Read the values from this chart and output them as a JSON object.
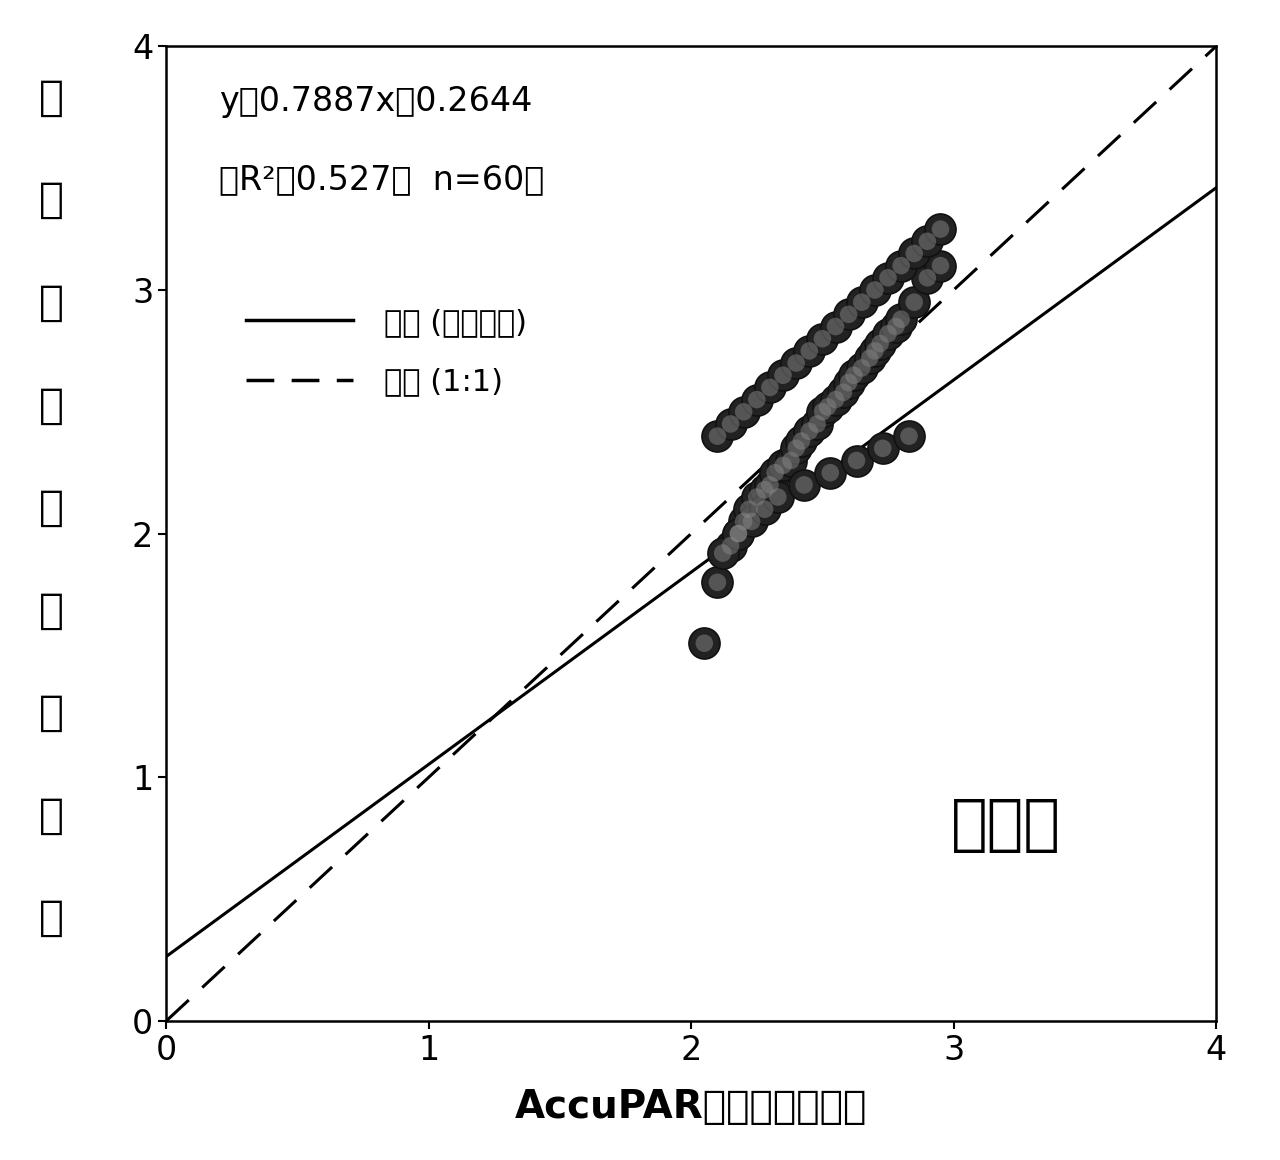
{
  "x_data": [
    2.05,
    2.1,
    2.15,
    2.18,
    2.2,
    2.22,
    2.25,
    2.28,
    2.3,
    2.32,
    2.35,
    2.38,
    2.4,
    2.42,
    2.45,
    2.48,
    2.5,
    2.52,
    2.55,
    2.58,
    2.6,
    2.62,
    2.65,
    2.68,
    2.7,
    2.72,
    2.75,
    2.78,
    2.8,
    2.85,
    2.9,
    2.95,
    2.1,
    2.15,
    2.2,
    2.25,
    2.3,
    2.35,
    2.4,
    2.45,
    2.5,
    2.55,
    2.6,
    2.65,
    2.7,
    2.75,
    2.8,
    2.85,
    2.9,
    2.95,
    2.12,
    2.18,
    2.23,
    2.28,
    2.33,
    2.43,
    2.53,
    2.63,
    2.73,
    2.83
  ],
  "y_data": [
    1.55,
    1.8,
    1.95,
    2.0,
    2.05,
    2.1,
    2.15,
    2.18,
    2.2,
    2.25,
    2.28,
    2.3,
    2.35,
    2.38,
    2.42,
    2.45,
    2.5,
    2.52,
    2.55,
    2.58,
    2.62,
    2.65,
    2.68,
    2.72,
    2.75,
    2.78,
    2.82,
    2.85,
    2.88,
    2.95,
    3.05,
    3.1,
    2.4,
    2.45,
    2.5,
    2.55,
    2.6,
    2.65,
    2.7,
    2.75,
    2.8,
    2.85,
    2.9,
    2.95,
    3.0,
    3.05,
    3.1,
    3.15,
    3.2,
    3.25,
    1.92,
    2.0,
    2.05,
    2.1,
    2.15,
    2.2,
    2.25,
    2.3,
    2.35,
    2.4
  ],
  "slope": 0.7887,
  "intercept": 0.2644,
  "r2": 0.527,
  "n": 60,
  "xlim": [
    0,
    4
  ],
  "ylim": [
    0,
    4
  ],
  "xticks": [
    0,
    1,
    2,
    3,
    4
  ],
  "yticks": [
    0,
    1,
    2,
    3,
    4
  ],
  "xlabel": "AccuPAR测定叶面积指数",
  "ylabel_chars": [
    "大",
    "田",
    "实",
    "际",
    "叶",
    "面",
    "积",
    "指",
    "数"
  ],
  "annotation_label": "盛鑑期",
  "eq_line1": "y＝0.7887x＋0.2644",
  "eq_line2": "（R²＝0.527，  n=60）",
  "legend_solid": "线性 (拟合曲线)",
  "legend_dashed": "线性 (1:1)",
  "marker_size": 200,
  "background_color": "#ffffff"
}
